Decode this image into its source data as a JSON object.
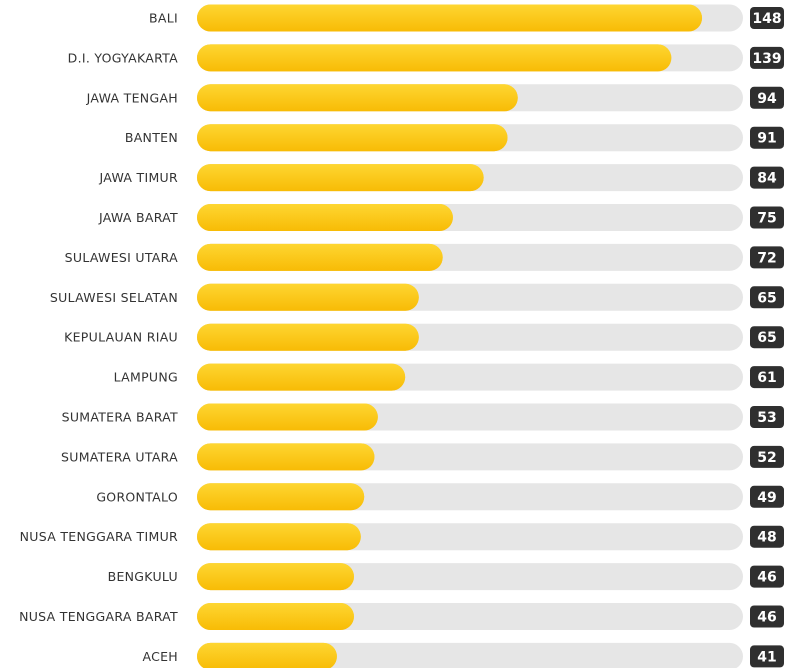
{
  "chart_data": {
    "type": "bar",
    "orientation": "horizontal",
    "categories": [
      "BALI",
      "D.I. YOGYAKARTA",
      "JAWA TENGAH",
      "BANTEN",
      "JAWA TIMUR",
      "JAWA BARAT",
      "SULAWESI UTARA",
      "SULAWESI SELATAN",
      "KEPULAUAN RIAU",
      "LAMPUNG",
      "SUMATERA BARAT",
      "SUMATERA UTARA",
      "GORONTALO",
      "NUSA TENGGARA TIMUR",
      "BENGKULU",
      "NUSA TENGGARA BARAT",
      "ACEH"
    ],
    "values": [
      148,
      139,
      94,
      91,
      84,
      75,
      72,
      65,
      65,
      61,
      53,
      52,
      49,
      48,
      46,
      46,
      41
    ],
    "color": "#fcc60d",
    "xlim": [
      0,
      160
    ]
  }
}
